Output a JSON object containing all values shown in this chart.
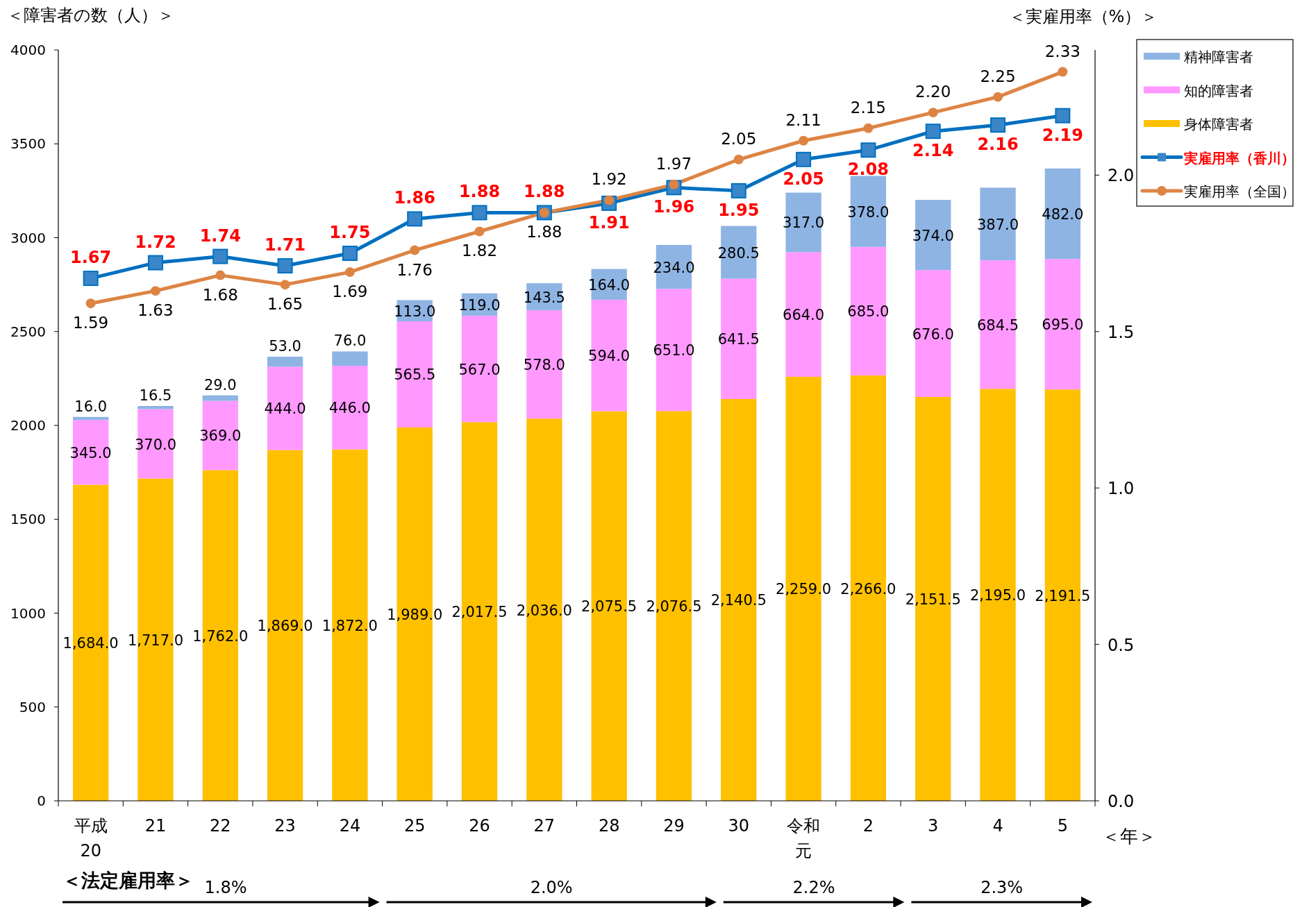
{
  "chart_data": {
    "type": "bar",
    "stacked": true,
    "categories": [
      "平成20",
      "21",
      "22",
      "23",
      "24",
      "25",
      "26",
      "27",
      "28",
      "29",
      "30",
      "令和元",
      "2",
      "3",
      "4",
      "5"
    ],
    "xlabel": "＜年＞",
    "ylabel": "＜障害者の数（人）＞",
    "y2label": "＜実雇用率（%）＞",
    "ylim": [
      0,
      4000
    ],
    "yticks": [
      0,
      500,
      1000,
      1500,
      2000,
      2500,
      3000,
      3500,
      4000
    ],
    "y2lim": [
      0,
      2.4
    ],
    "y2ticks": [
      {
        "value": 0,
        "label": "0.0"
      },
      {
        "value": 0.5,
        "label": "0.5"
      },
      {
        "value": 1,
        "label": "1.0"
      },
      {
        "value": 1.5,
        "label": "1.5"
      },
      {
        "value": 2,
        "label": "2.0"
      }
    ],
    "grid": false,
    "legend": "top right",
    "series": [
      {
        "name": "身体障害者",
        "color": "#ffc000",
        "values": [
          1684,
          1717,
          1762,
          1869,
          1872,
          1989,
          2017.5,
          2036,
          2075.5,
          2076.5,
          2140.5,
          2259,
          2266,
          2151.5,
          2195,
          2191.5
        ],
        "value_labels": [
          "1,684.0",
          "1,717.0",
          "1,762.0",
          "1,869.0",
          "1,872.0",
          "1,989.0",
          "2,017.5",
          "2,036.0",
          "2,075.5",
          "2,076.5",
          "2,140.5",
          "2,259.0",
          "2,266.0",
          "2,151.5",
          "2,195.0",
          "2,191.5"
        ]
      },
      {
        "name": "知的障害者",
        "color": "#ff99ff",
        "values": [
          345,
          370,
          369,
          444,
          446,
          565.5,
          567,
          578,
          594,
          651,
          641.5,
          664,
          685,
          676,
          684.5,
          695
        ],
        "value_labels": [
          "345.0",
          "370.0",
          "369.0",
          "444.0",
          "446.0",
          "565.5",
          "567.0",
          "578.0",
          "594.0",
          "651.0",
          "641.5",
          "664.0",
          "685.0",
          "676.0",
          "684.5",
          "695.0"
        ]
      },
      {
        "name": "精神障害者",
        "color": "#8eb4e3",
        "values": [
          16,
          16.5,
          29,
          53,
          76,
          113,
          119,
          143.5,
          164,
          234,
          280.5,
          317,
          378,
          374,
          387,
          482
        ],
        "value_labels": [
          "16.0",
          "16.5",
          "29.0",
          "53.0",
          "76.0",
          "113.0",
          "119.0",
          "143.5",
          "164.0",
          "234.0",
          "280.5",
          "317.0",
          "378.0",
          "374.0",
          "387.0",
          "482.0"
        ]
      },
      {
        "name": "実雇用率（香川）",
        "type": "line",
        "axis": "y2",
        "marker": "square",
        "line_style": "solid",
        "color": "#0070c0",
        "values": [
          1.67,
          1.72,
          1.74,
          1.71,
          1.75,
          1.86,
          1.88,
          1.88,
          1.91,
          1.96,
          1.95,
          2.05,
          2.08,
          2.14,
          2.16,
          2.19
        ],
        "value_labels": [
          "1.67",
          "1.72",
          "1.74",
          "1.71",
          "1.75",
          "1.86",
          "1.88",
          "1.88",
          "1.91",
          "1.96",
          "1.95",
          "2.05",
          "2.08",
          "2.14",
          "2.16",
          "2.19"
        ]
      },
      {
        "name": "実雇用率（全国）",
        "type": "line",
        "axis": "y2",
        "marker": "circle",
        "line_style": "solid",
        "color": "#dd8444",
        "values": [
          1.59,
          1.63,
          1.68,
          1.65,
          1.69,
          1.76,
          1.82,
          1.88,
          1.92,
          1.97,
          2.05,
          2.11,
          2.15,
          2.2,
          2.25,
          2.33
        ],
        "value_labels": [
          "1.59",
          "1.63",
          "1.68",
          "1.65",
          "1.69",
          "1.76",
          "1.82",
          "1.88",
          "1.92",
          "1.97",
          "2.05",
          "2.11",
          "2.15",
          "2.20",
          "2.25",
          "2.33"
        ]
      }
    ],
    "annotations": [
      "＜法定雇用率＞",
      "1.8%",
      "2.0%",
      "2.2%",
      "2.3%"
    ]
  }
}
